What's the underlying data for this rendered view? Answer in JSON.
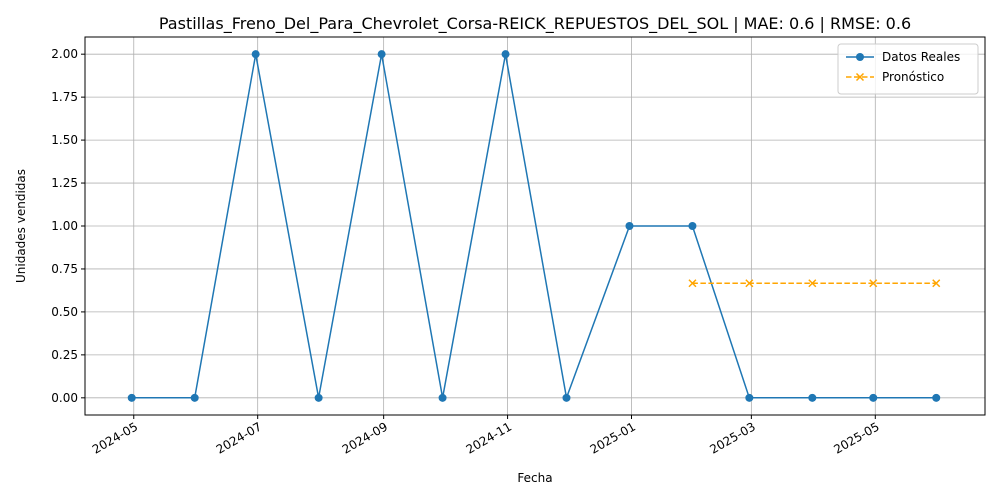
{
  "chart_data": {
    "type": "line",
    "title": "Pastillas_Freno_Del_Para_Chevrolet_Corsa-REICK_REPUESTOS_DEL_SOL | MAE: 0.6 | RMSE: 0.6",
    "xlabel": "Fecha",
    "ylabel": "Unidades vendidas",
    "xlim": [
      "2024-04-07",
      "2025-06-24"
    ],
    "ylim": [
      -0.1,
      2.1
    ],
    "x_ticks": [
      "2024-05",
      "2024-07",
      "2024-09",
      "2024-11",
      "2025-01",
      "2025-03",
      "2025-05"
    ],
    "x_tick_dates": [
      "2024-05-01",
      "2024-07-01",
      "2024-09-01",
      "2024-11-01",
      "2025-01-01",
      "2025-03-01",
      "2025-05-01"
    ],
    "y_ticks": [
      "0.00",
      "0.25",
      "0.50",
      "0.75",
      "1.00",
      "1.25",
      "1.50",
      "1.75",
      "2.00"
    ],
    "grid": true,
    "legend_position": "top-right",
    "series": [
      {
        "name": "Datos Reales",
        "color": "#1f77b4",
        "style": "solid",
        "marker": "circle",
        "x": [
          "2024-04-30",
          "2024-05-31",
          "2024-06-30",
          "2024-07-31",
          "2024-08-31",
          "2024-09-30",
          "2024-10-31",
          "2024-11-30",
          "2024-12-31",
          "2025-01-31",
          "2025-02-28",
          "2025-03-31",
          "2025-04-30",
          "2025-05-31"
        ],
        "values": [
          0,
          0,
          2,
          0,
          2,
          0,
          2,
          0,
          1,
          1,
          0,
          0,
          0,
          0
        ]
      },
      {
        "name": "Pronóstico",
        "color": "#ffa500",
        "style": "dashed",
        "marker": "x",
        "x": [
          "2025-01-31",
          "2025-02-28",
          "2025-03-31",
          "2025-04-30",
          "2025-05-31"
        ],
        "values": [
          0.6667,
          0.6667,
          0.6667,
          0.6667,
          0.6667
        ]
      }
    ]
  }
}
